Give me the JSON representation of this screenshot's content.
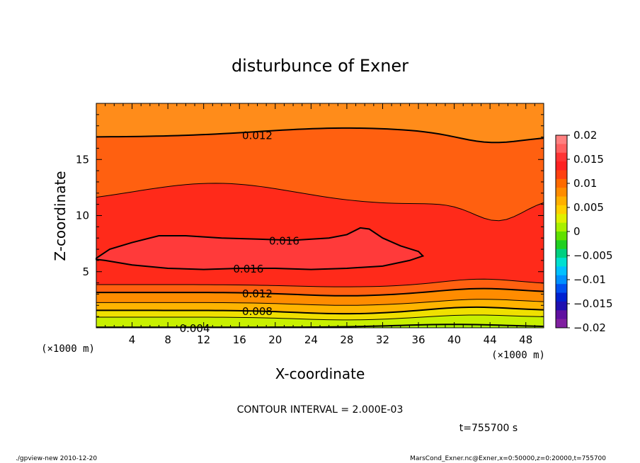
{
  "chart_data": {
    "type": "contour",
    "title": "disturbunce of Exner",
    "xlabel": "X-coordinate",
    "ylabel": "Z-coordinate",
    "x_unit": "(×1000 m)",
    "y_unit": "(×1000 m)",
    "xlim": [
      0,
      50
    ],
    "ylim": [
      0,
      20
    ],
    "x_ticks": [
      4,
      8,
      12,
      16,
      20,
      24,
      28,
      32,
      36,
      40,
      44,
      48
    ],
    "x_tick_labels": [
      "4",
      "8",
      "12",
      "16",
      "20",
      "24",
      "28",
      "32",
      "36",
      "40",
      "44",
      "48"
    ],
    "y_ticks": [
      5,
      10,
      15
    ],
    "y_tick_labels": [
      "5",
      "10",
      "15"
    ],
    "contour_labels": [
      {
        "text": "0.012",
        "level": 0.012,
        "x": 18,
        "z": 17.2
      },
      {
        "text": "0.016",
        "level": 0.016,
        "x": 21,
        "z": 7.8
      },
      {
        "text": "0.016",
        "level": 0.016,
        "x": 17,
        "z": 5.3
      },
      {
        "text": "0.012",
        "level": 0.012,
        "x": 18,
        "z": 3.1
      },
      {
        "text": "0.008",
        "level": 0.008,
        "x": 18,
        "z": 1.5
      },
      {
        "text": "0.004",
        "level": 0.004,
        "x": 11,
        "z": 0.0
      }
    ],
    "contour_interval": "CONTOUR INTERVAL = 2.000E-03",
    "colorbar": {
      "range": [
        -0.02,
        0.02
      ],
      "tick_labels": [
        "0.02",
        "0.015",
        "0.01",
        "0.005",
        "0",
        "−0.005",
        "−0.01",
        "−0.015",
        "−0.02"
      ],
      "colors": [
        "#ff8080",
        "#ff6060",
        "#ff3333",
        "#ff2222",
        "#ff4010",
        "#ff6a00",
        "#ff8c00",
        "#ffb000",
        "#ffd000",
        "#e0f000",
        "#a8f000",
        "#60e000",
        "#20d020",
        "#00d080",
        "#00e0d0",
        "#00c0ff",
        "#0090ff",
        "#0050f0",
        "#0020d0",
        "#2010b0",
        "#6010a0",
        "#8020a0"
      ]
    },
    "bands": [
      {
        "lo": 19.2,
        "hi": 20.0,
        "color": "#ff9a1a"
      },
      {
        "lo": 18.2,
        "hi": 19.2,
        "color": "#ff8c1a"
      },
      {
        "lo": 17.1,
        "hi": 18.2,
        "color": "#ff7a10"
      },
      {
        "lo": 14.2,
        "hi": 17.1,
        "color": "#ff6010"
      },
      {
        "lo": 11.8,
        "hi": 14.2,
        "color": "#ff4416"
      },
      {
        "lo": 8.0,
        "hi": 11.8,
        "color": "#ff2a1a"
      },
      {
        "lo": 5.4,
        "hi": 8.0,
        "color": "#ff2222"
      },
      {
        "lo": 4.0,
        "hi": 5.4,
        "color": "#ff2a1a"
      },
      {
        "lo": 3.6,
        "hi": 4.0,
        "color": "#ff4416"
      },
      {
        "lo": 3.1,
        "hi": 3.6,
        "color": "#ff6010"
      },
      {
        "lo": 2.6,
        "hi": 3.1,
        "color": "#ff7a10"
      },
      {
        "lo": 2.2,
        "hi": 2.6,
        "color": "#ff9a00"
      },
      {
        "lo": 1.8,
        "hi": 2.2,
        "color": "#ffb400"
      },
      {
        "lo": 1.5,
        "hi": 1.8,
        "color": "#ffd000"
      },
      {
        "lo": 1.0,
        "hi": 1.5,
        "color": "#f0ec00"
      },
      {
        "lo": 0.6,
        "hi": 1.0,
        "color": "#d4f000"
      },
      {
        "lo": 0.0,
        "hi": 0.6,
        "color": "#a8ee00"
      }
    ]
  },
  "time_label": "t=755700 s",
  "footer": {
    "left": "./gpview-new   2010-12-20",
    "right": "MarsCond_Exner.nc@Exner,x=0:50000,z=0:20000,t=755700"
  }
}
